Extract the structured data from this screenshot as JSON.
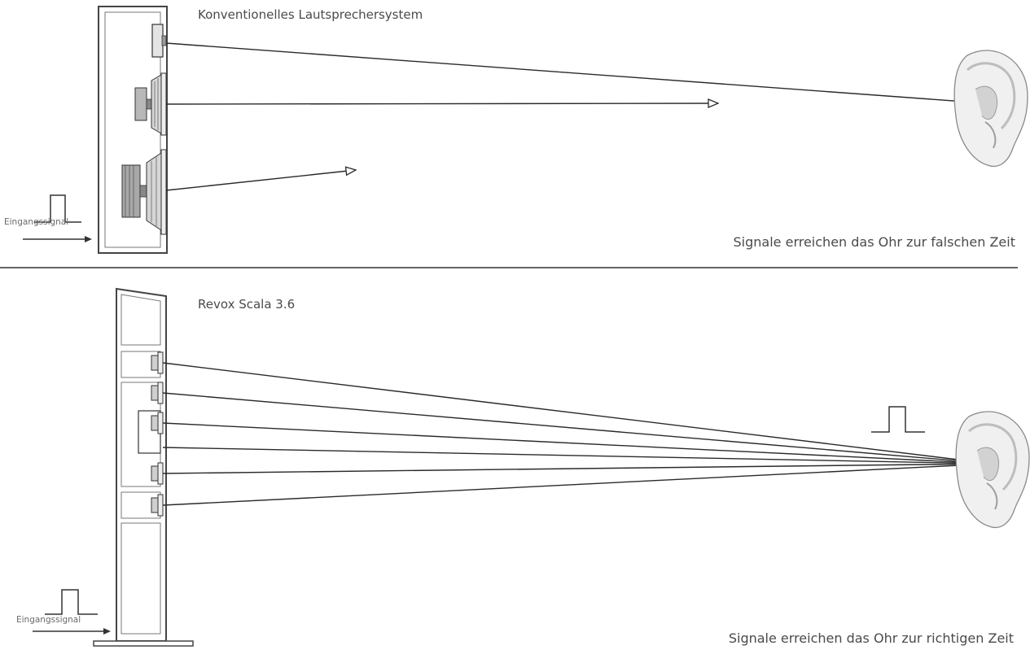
{
  "top": {
    "title": "Konventionelles Lautsprechersystem",
    "caption": "Signale erreichen das Ohr zur falschen Zeit",
    "input_label": "Eingangssignal"
  },
  "bottom": {
    "title": "Revox Scala 3.6",
    "caption": "Signale erreichen das Ohr zur richtigen Zeit",
    "input_label": "Eingangssignal"
  },
  "colors": {
    "line": "#2a2a2a",
    "cabinet": "#444444",
    "ear_fill": "#f0f0f0",
    "ear_shade": "#cfcfcf"
  },
  "icons": [
    "ear-icon",
    "pulse-signal-icon",
    "arrow-icon",
    "tweeter-icon",
    "midrange-driver-icon",
    "woofer-icon"
  ]
}
